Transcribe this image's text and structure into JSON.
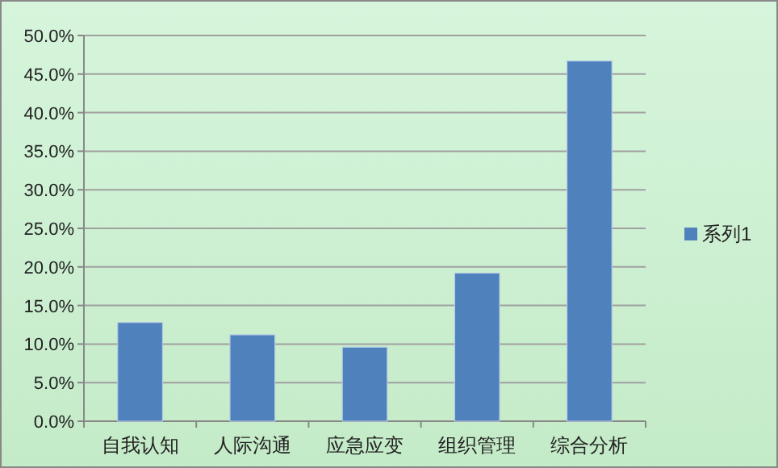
{
  "chart_data": {
    "type": "bar",
    "categories": [
      "自我认知",
      "人际沟通",
      "应急应变",
      "组织管理",
      "综合分析"
    ],
    "series": [
      {
        "name": "系列1",
        "color": "#4f81bd",
        "values": [
          12.8,
          11.2,
          9.6,
          19.2,
          46.7
        ]
      }
    ],
    "ylim": [
      0,
      50
    ],
    "yticks": [
      {
        "value": 0,
        "label": "0.0%"
      },
      {
        "value": 5,
        "label": "5.0%"
      },
      {
        "value": 10,
        "label": "10.0%"
      },
      {
        "value": 15,
        "label": "15.0%"
      },
      {
        "value": 20,
        "label": "20.0%"
      },
      {
        "value": 25,
        "label": "25.0%"
      },
      {
        "value": 30,
        "label": "30.0%"
      },
      {
        "value": 35,
        "label": "35.0%"
      },
      {
        "value": 40,
        "label": "40.0%"
      },
      {
        "value": 45,
        "label": "45.0%"
      },
      {
        "value": 50,
        "label": "50.0%"
      }
    ],
    "grid": "y",
    "legend": "right"
  }
}
